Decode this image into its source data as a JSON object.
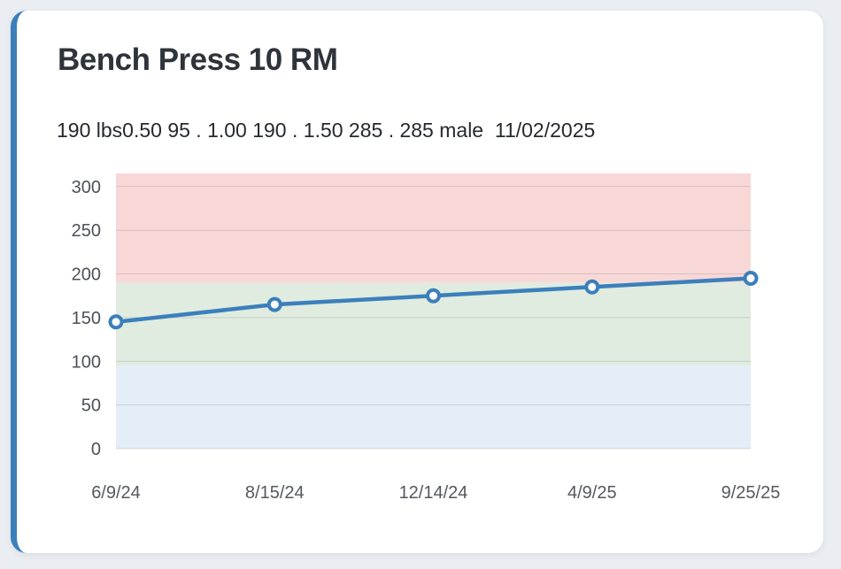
{
  "page": {
    "background": "#eaedf1"
  },
  "card": {
    "accent_color": "#3b7fbb",
    "background": "#ffffff",
    "title": "Bench Press 10 RM",
    "subtitle": "190 lbs0.50 95 . 1.00 190 . 1.50 285 . 285 male  11/02/2025"
  },
  "chart_data": {
    "type": "line",
    "title": "Bench Press 10 RM",
    "categories": [
      "6/9/24",
      "8/15/24",
      "12/14/24",
      "4/9/25",
      "9/25/25"
    ],
    "series": [
      {
        "name": "Bench Press 10 RM (lbs)",
        "values": [
          145,
          165,
          175,
          185,
          195
        ]
      }
    ],
    "xlabel": "",
    "ylabel": "",
    "ylim": [
      0,
      315
    ],
    "yticks": [
      0,
      50,
      100,
      150,
      200,
      250,
      300
    ],
    "grid": true,
    "legend": false,
    "line_color": "#3b7fbb",
    "marker": {
      "fill": "#ffffff",
      "stroke": "#3b7fbb"
    },
    "zones": [
      {
        "from": 0,
        "to": 95,
        "color": "#e3eef8"
      },
      {
        "from": 95,
        "to": 190,
        "color": "#e0ecdf"
      },
      {
        "from": 190,
        "to": 315,
        "color": "#f8d8d6"
      }
    ],
    "zone_thresholds": {
      "0.50": 95,
      "1.00": 190,
      "1.50": 285
    },
    "axis_label_color": "#4d5157"
  }
}
